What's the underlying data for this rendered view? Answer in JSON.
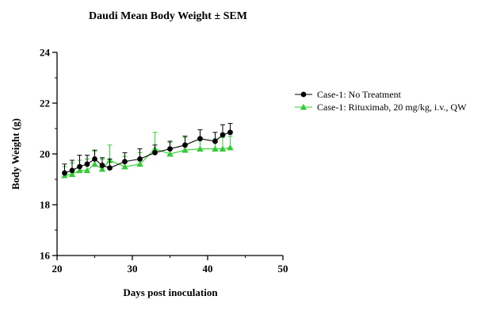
{
  "chart_data": {
    "type": "line",
    "title": "Daudi Mean Body Weight ± SEM",
    "xlabel": "Days post inoculation",
    "ylabel": "Body Weight (g)",
    "xlim": [
      20,
      50
    ],
    "ylim": [
      16,
      24
    ],
    "x_ticks": [
      "20",
      "30",
      "40",
      "50"
    ],
    "y_ticks": [
      "16",
      "18",
      "20",
      "22",
      "24"
    ],
    "grid": false,
    "legend_position": "right",
    "series": [
      {
        "name": "Case-1: No Treatment",
        "color": "#000000",
        "marker": "circle",
        "x": [
          21,
          22,
          23,
          24,
          25,
          26,
          27,
          29,
          31,
          33,
          35,
          37,
          39,
          41,
          42,
          43
        ],
        "y": [
          19.25,
          19.35,
          19.5,
          19.6,
          19.8,
          19.55,
          19.45,
          19.7,
          19.8,
          20.05,
          20.2,
          20.35,
          20.6,
          20.5,
          20.75,
          20.85
        ],
        "sem": [
          0.35,
          0.4,
          0.45,
          0.35,
          0.35,
          0.3,
          0.35,
          0.35,
          0.4,
          0.3,
          0.3,
          0.35,
          0.35,
          0.35,
          0.4,
          0.35
        ]
      },
      {
        "name": "Case-1: Rituximab, 20 mg/kg, i.v., QW",
        "color": "#33cc33",
        "marker": "triangle",
        "x": [
          21,
          22,
          23,
          24,
          25,
          26,
          27,
          29,
          31,
          33,
          35,
          37,
          39,
          41,
          42,
          43
        ],
        "y": [
          19.15,
          19.2,
          19.35,
          19.35,
          19.6,
          19.4,
          19.75,
          19.5,
          19.6,
          20.2,
          20.0,
          20.15,
          20.2,
          20.2,
          20.2,
          20.25
        ],
        "sem": [
          0.35,
          0.45,
          0.4,
          0.45,
          0.5,
          0.4,
          0.6,
          0.4,
          0.45,
          0.65,
          0.45,
          0.5,
          0.45,
          0.4,
          0.45,
          0.45
        ]
      }
    ]
  }
}
